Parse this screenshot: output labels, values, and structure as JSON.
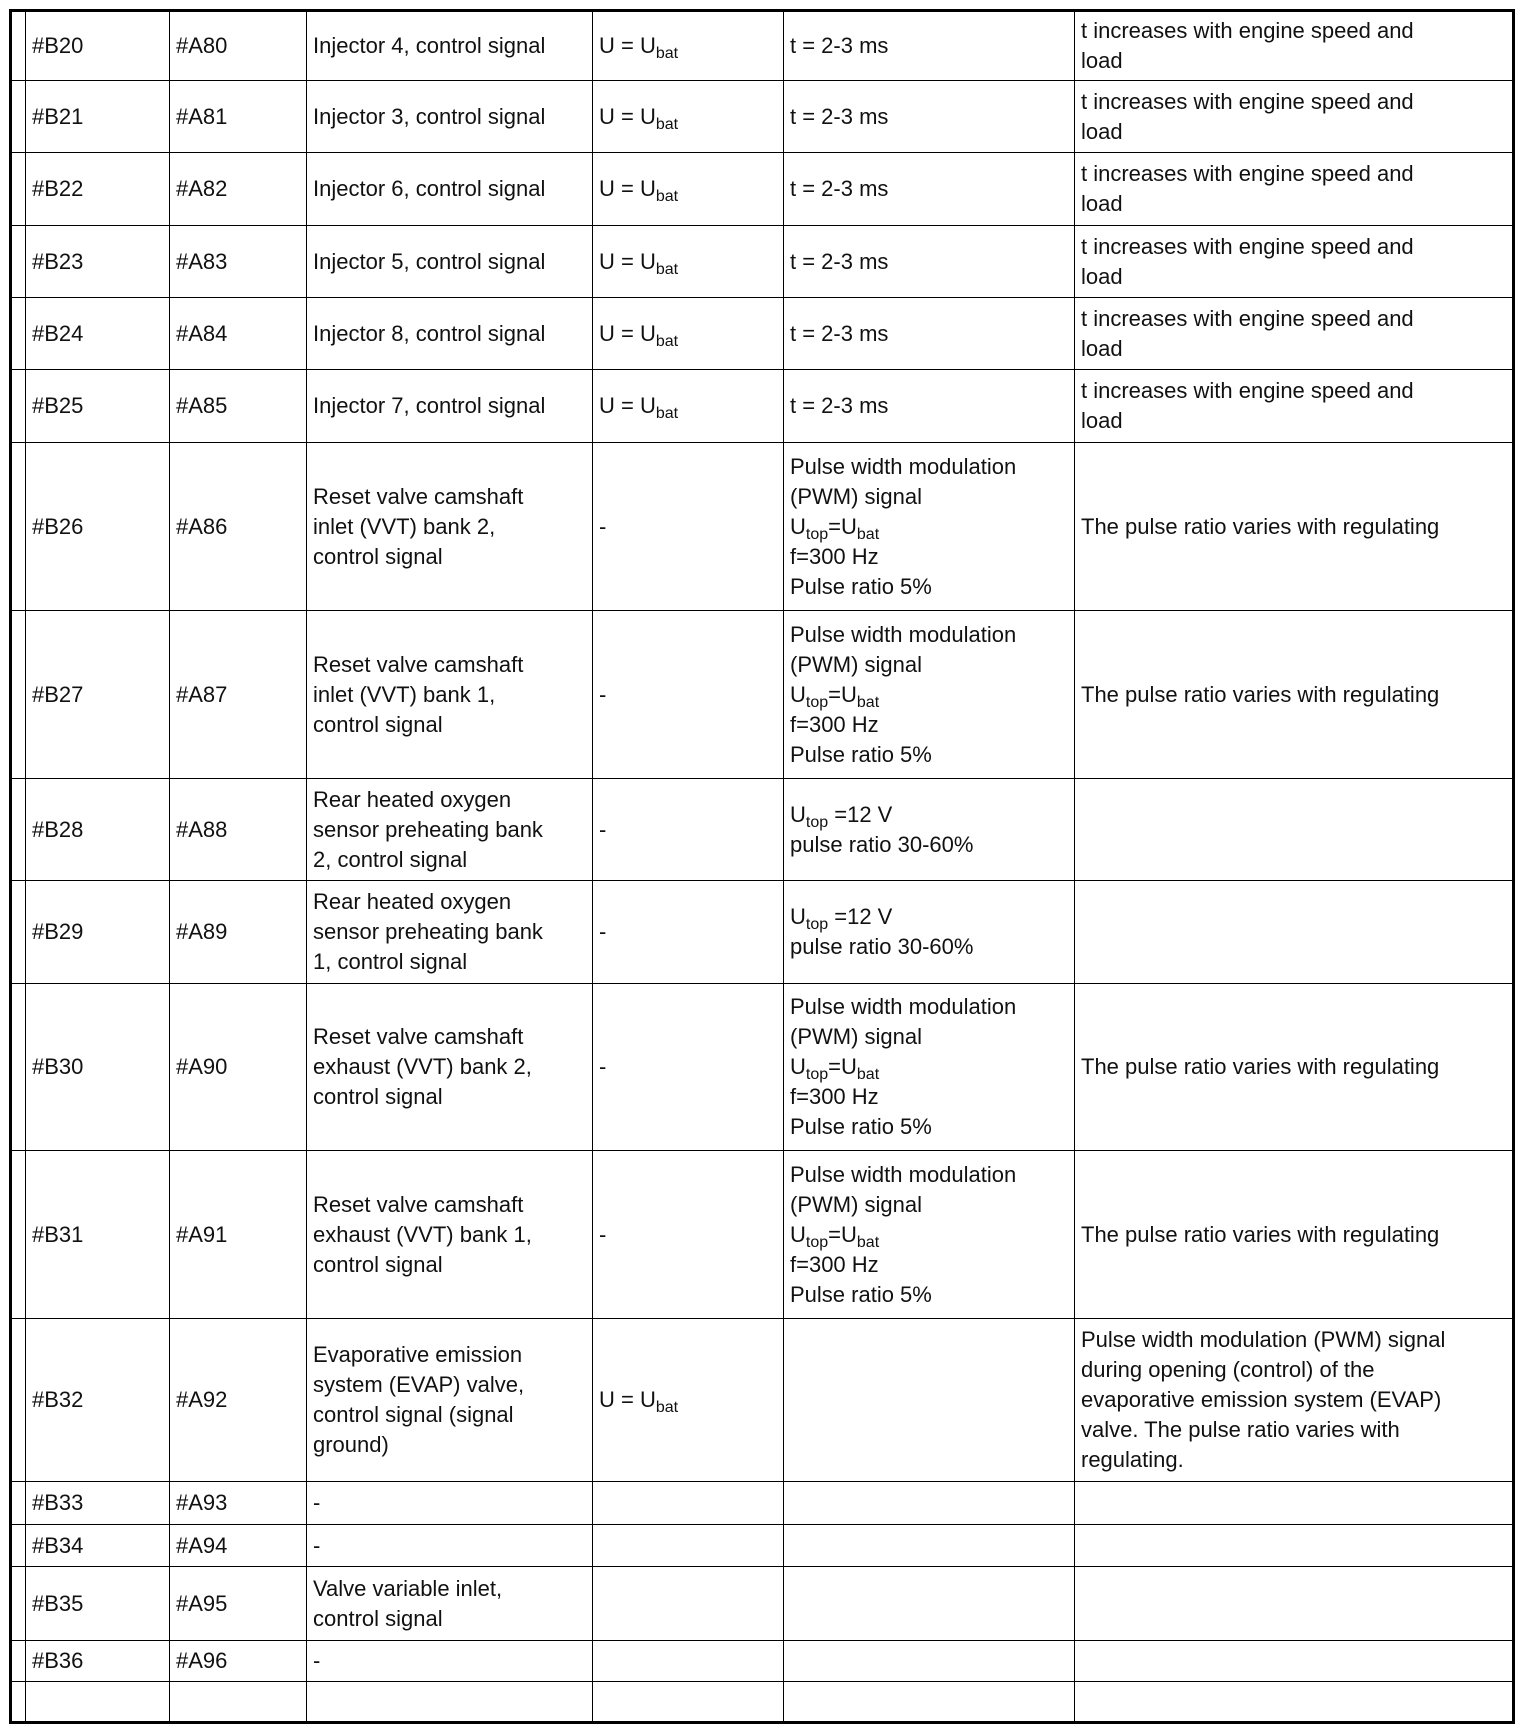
{
  "table": {
    "rows": [
      [
        "#B20",
        "#A80",
        "Injector 4, control signal",
        [
          [
            "U = U",
            {
              "sub": "bat"
            }
          ]
        ],
        "t = 2-3 ms",
        [
          "t increases with engine speed and",
          "load"
        ]
      ],
      [
        "#B21",
        "#A81",
        "Injector 3, control signal",
        [
          [
            "U = U",
            {
              "sub": "bat"
            }
          ]
        ],
        "t = 2-3 ms",
        [
          "t increases with engine speed and",
          "load"
        ]
      ],
      [
        "#B22",
        "#A82",
        "Injector 6, control signal",
        [
          [
            "U = U",
            {
              "sub": "bat"
            }
          ]
        ],
        "t = 2-3 ms",
        [
          "t increases with engine speed and",
          "load"
        ]
      ],
      [
        "#B23",
        "#A83",
        "Injector 5, control signal",
        [
          [
            "U = U",
            {
              "sub": "bat"
            }
          ]
        ],
        "t = 2-3 ms",
        [
          "t increases with engine speed and",
          "load"
        ]
      ],
      [
        "#B24",
        "#A84",
        "Injector 8, control signal",
        [
          [
            "U = U",
            {
              "sub": "bat"
            }
          ]
        ],
        "t = 2-3 ms",
        [
          "t increases with engine speed and",
          "load"
        ]
      ],
      [
        "#B25",
        "#A85",
        "Injector 7, control signal",
        [
          [
            "U = U",
            {
              "sub": "bat"
            }
          ]
        ],
        "t = 2-3 ms",
        [
          "t increases with engine speed and",
          "load"
        ]
      ],
      [
        "#B26",
        "#A86",
        [
          "Reset valve camshaft",
          "inlet (VVT) bank 2,",
          "control signal"
        ],
        "-",
        [
          "Pulse width modulation",
          "(PWM) signal",
          [
            "U",
            {
              "sub": "top"
            },
            "=U",
            {
              "sub": "bat"
            }
          ],
          "f=300 Hz",
          "Pulse ratio 5%"
        ],
        "The pulse ratio varies with regulating"
      ],
      [
        "#B27",
        "#A87",
        [
          "Reset valve camshaft",
          "inlet (VVT) bank 1,",
          "control signal"
        ],
        "-",
        [
          "Pulse width modulation",
          "(PWM) signal",
          [
            "U",
            {
              "sub": "top"
            },
            "=U",
            {
              "sub": "bat"
            }
          ],
          "f=300 Hz",
          "Pulse ratio 5%"
        ],
        "The pulse ratio varies with regulating"
      ],
      [
        "#B28",
        "#A88",
        [
          "Rear heated oxygen",
          "sensor preheating bank",
          "2, control signal"
        ],
        "-",
        [
          [
            "U",
            {
              "sub": "top"
            },
            " =12 V"
          ],
          "pulse ratio 30-60%"
        ],
        null
      ],
      [
        "#B29",
        "#A89",
        [
          "Rear heated oxygen",
          "sensor preheating bank",
          "1, control signal"
        ],
        "-",
        [
          [
            "U",
            {
              "sub": "top"
            },
            " =12 V"
          ],
          "pulse ratio 30-60%"
        ],
        null
      ],
      [
        "#B30",
        "#A90",
        [
          "Reset valve camshaft",
          "exhaust (VVT) bank 2,",
          "control signal"
        ],
        "-",
        [
          "Pulse width modulation",
          "(PWM) signal",
          [
            "U",
            {
              "sub": "top"
            },
            "=U",
            {
              "sub": "bat"
            }
          ],
          "f=300 Hz",
          "Pulse ratio 5%"
        ],
        "The pulse ratio varies with regulating"
      ],
      [
        "#B31",
        "#A91",
        [
          "Reset valve camshaft",
          "exhaust (VVT) bank 1,",
          "control signal"
        ],
        "-",
        [
          "Pulse width modulation",
          "(PWM) signal",
          [
            "U",
            {
              "sub": "top"
            },
            "=U",
            {
              "sub": "bat"
            }
          ],
          "f=300 Hz",
          "Pulse ratio 5%"
        ],
        "The pulse ratio varies with regulating"
      ],
      [
        "#B32",
        "#A92",
        [
          "Evaporative emission",
          "system (EVAP) valve,",
          "control signal (signal",
          "ground)"
        ],
        [
          [
            "U = U",
            {
              "sub": "bat"
            }
          ]
        ],
        null,
        [
          "Pulse width modulation (PWM) signal",
          "during opening (control) of the",
          "evaporative emission system (EVAP)",
          "valve. The pulse ratio varies with",
          "regulating."
        ]
      ],
      [
        "#B33",
        "#A93",
        "-",
        null,
        null,
        null
      ],
      [
        "#B34",
        "#A94",
        "-",
        null,
        null,
        null
      ],
      [
        "#B35",
        "#A95",
        [
          "Valve variable inlet,",
          "control signal"
        ],
        null,
        null,
        null
      ],
      [
        "#B36",
        "#A96",
        "-",
        null,
        null,
        null
      ],
      [
        null,
        null,
        null,
        null,
        null,
        null
      ]
    ]
  }
}
